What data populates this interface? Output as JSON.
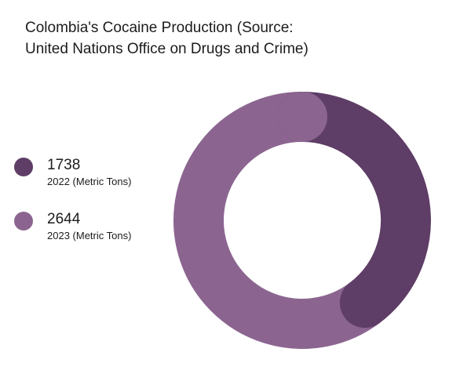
{
  "chart_data": {
    "type": "pie",
    "variant": "donut",
    "title": "Colombia's Cocaine Production (Source: United Nations Office on Drugs and Crime)",
    "legend_position": "left",
    "slices": [
      {
        "value_label": "1738",
        "label": "2022 (Metric Tons)",
        "value": 1738,
        "color": "#5e3d66"
      },
      {
        "value_label": "2644",
        "label": "2023 (Metric Tons)",
        "value": 2644,
        "color": "#8b6590"
      }
    ]
  }
}
